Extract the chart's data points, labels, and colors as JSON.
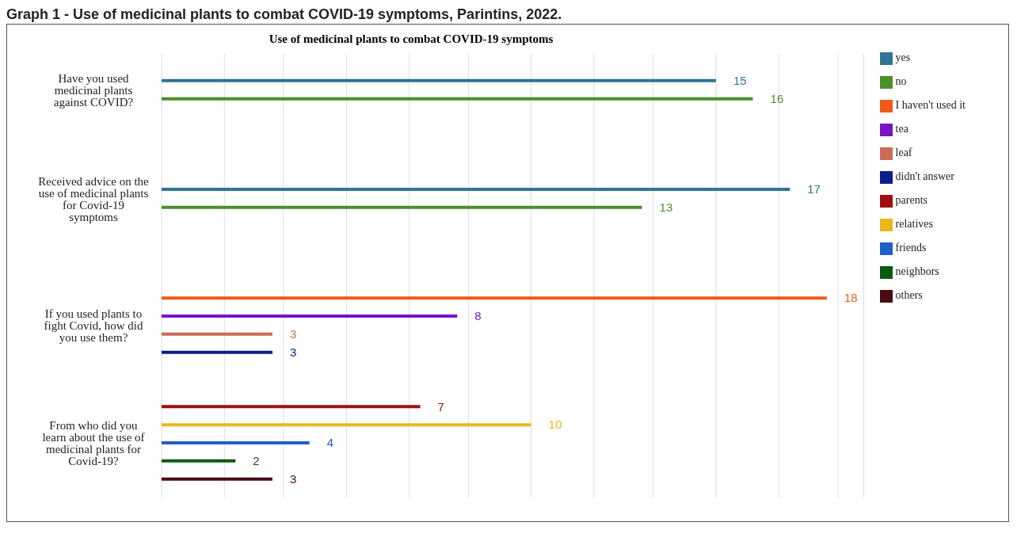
{
  "chart_data": {
    "type": "bar",
    "orientation": "horizontal",
    "title": "Use of medicinal plants to combat COVID-19 symptoms",
    "annotations": [
      "Graph 1 - Use of medicinal plants to combat COVID-19 symptoms, Parintins, 2022."
    ],
    "categories": [
      "Have you used medicinal plants against COVID?",
      "Received advice on the use of medicinal plants for Covid-19 symptoms",
      "If you used plants to fight Covid, how did you use them?",
      "From who did you learn about the use of medicinal plants for Covid-19?"
    ],
    "series": [
      {
        "name": "yes",
        "color": "#2e7596",
        "values": [
          15,
          17,
          null,
          null
        ]
      },
      {
        "name": "no",
        "color": "#4a8f2c",
        "values": [
          16,
          13,
          null,
          null
        ]
      },
      {
        "name": "I haven't used it",
        "color": "#f05a16",
        "values": [
          null,
          null,
          18,
          null
        ]
      },
      {
        "name": "tea",
        "color": "#7a12c8",
        "values": [
          null,
          null,
          8,
          null
        ]
      },
      {
        "name": "leaf",
        "color": "#cd6a55",
        "values": [
          null,
          null,
          3,
          null
        ]
      },
      {
        "name": "didn't answer",
        "color": "#0a1e8c",
        "values": [
          null,
          null,
          3,
          null
        ]
      },
      {
        "name": "parents",
        "color": "#a00f0f",
        "values": [
          null,
          null,
          null,
          7
        ]
      },
      {
        "name": "relatives",
        "color": "#e8b818",
        "values": [
          null,
          null,
          null,
          10
        ]
      },
      {
        "name": "friends",
        "color": "#1f5fc8",
        "values": [
          null,
          null,
          null,
          4
        ]
      },
      {
        "name": "neighbors",
        "color": "#0b5a12",
        "values": [
          null,
          null,
          null,
          2
        ]
      },
      {
        "name": "others",
        "color": "#4a0a14",
        "values": [
          null,
          null,
          null,
          3
        ]
      }
    ],
    "xlim": [
      0,
      19
    ],
    "xticks": [
      {
        "value": 0,
        "label": null
      },
      {
        "value": 1.7,
        "label": null
      },
      {
        "value": 3.3,
        "label": null
      },
      {
        "value": 5,
        "label": null
      },
      {
        "value": 6.7,
        "label": null
      },
      {
        "value": 8.3,
        "label": null
      },
      {
        "value": 10,
        "label": null
      },
      {
        "value": 11.7,
        "label": null
      },
      {
        "value": 13.3,
        "label": null
      },
      {
        "value": 15,
        "label": null
      },
      {
        "value": 16.7,
        "label": null
      },
      {
        "value": 18.3,
        "label": null
      }
    ],
    "grid": "x",
    "legend": "right",
    "data_labels": true
  }
}
